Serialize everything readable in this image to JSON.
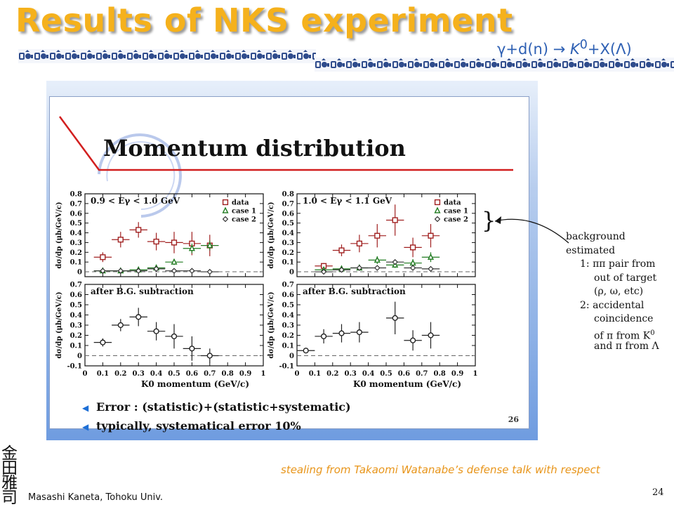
{
  "header": {
    "title": "Results of NKS experiment",
    "reaction": {
      "lhs": "γ+d(n) → ",
      "product": "K",
      "sup": "0",
      "rhs": "+X(Λ)"
    }
  },
  "slide": {
    "title": "Momentum distribution",
    "number": "26",
    "bullets": [
      "Error : (statistic)+(statistic+systematic)",
      "typically, systematical error 10%"
    ],
    "legend": {
      "data": "data",
      "case1": "case 1",
      "case2": "case 2"
    },
    "subtraction_label": "after B.G. subtraction",
    "brace": "}"
  },
  "background_note": {
    "lines": [
      "background",
      "estimated",
      "1: ππ pair from",
      "out of target",
      "(ρ, ω, etc)",
      "2: accidental",
      "coincidence",
      "of π from K",
      "and π from Λ"
    ],
    "sup_line": 7,
    "sup_text": "0"
  },
  "footer": {
    "credit": "stealing from Takaomi Watanabe’s defense talk with respect",
    "author": "Masashi Kaneta, Tohoku Univ.",
    "page": "24",
    "kanji": [
      "金",
      "田",
      "雅",
      "司"
    ]
  },
  "colors": {
    "title": "#f5b11c",
    "reaction": "#2d5fb3",
    "credit": "#e8951a",
    "data": "#a02020",
    "case1": "#1f7a1f",
    "case2": "#333333"
  },
  "chart_data": [
    {
      "type": "scatter",
      "title": "0.9 < Eγ < 1.0 GeV",
      "xlabel": "K0 momentum (GeV/c)",
      "ylabel": "dσ/dp (μb/GeV/c)",
      "xlim": [
        0,
        1
      ],
      "ylim": [
        -0.05,
        0.8
      ],
      "yticks": [
        0,
        0.1,
        0.2,
        0.3,
        0.4,
        0.5,
        0.6,
        0.7,
        0.8
      ],
      "series": [
        {
          "name": "data",
          "marker": "square",
          "color": "#a02020",
          "x": [
            0.1,
            0.2,
            0.3,
            0.4,
            0.5,
            0.6,
            0.7
          ],
          "y": [
            0.15,
            0.33,
            0.43,
            0.31,
            0.3,
            0.29,
            0.27
          ],
          "yerr": [
            0.05,
            0.08,
            0.08,
            0.09,
            0.11,
            0.12,
            0.11
          ]
        },
        {
          "name": "case 1",
          "marker": "triangle",
          "color": "#1f7a1f",
          "x": [
            0.1,
            0.2,
            0.3,
            0.4,
            0.5,
            0.6,
            0.7
          ],
          "y": [
            0.01,
            0.01,
            0.02,
            0.04,
            0.1,
            0.24,
            0.27
          ],
          "yerr": [
            0.01,
            0.01,
            0.01,
            0.02,
            0.03,
            0.05,
            0.05
          ]
        },
        {
          "name": "case 2",
          "marker": "diamond",
          "color": "#333333",
          "x": [
            0.1,
            0.2,
            0.3,
            0.4,
            0.5,
            0.6,
            0.7
          ],
          "y": [
            0.01,
            0.01,
            0.01,
            0.03,
            0.01,
            0.01,
            0.0
          ],
          "yerr": [
            0.005,
            0.005,
            0.005,
            0.01,
            0.005,
            0.005,
            0.005
          ]
        }
      ]
    },
    {
      "type": "scatter",
      "title": "1.0 < Eγ < 1.1 GeV",
      "xlabel": "K0 momentum (GeV/c)",
      "ylabel": "dσ/dp (μb/GeV/c)",
      "xlim": [
        0,
        1
      ],
      "ylim": [
        -0.05,
        0.8
      ],
      "yticks": [
        0,
        0.1,
        0.2,
        0.3,
        0.4,
        0.5,
        0.6,
        0.7,
        0.8
      ],
      "series": [
        {
          "name": "data",
          "marker": "square",
          "color": "#a02020",
          "x": [
            0.15,
            0.25,
            0.35,
            0.45,
            0.55,
            0.65,
            0.75
          ],
          "y": [
            0.06,
            0.22,
            0.29,
            0.37,
            0.53,
            0.25,
            0.37
          ],
          "yerr": [
            0.03,
            0.06,
            0.09,
            0.12,
            0.16,
            0.1,
            0.12
          ]
        },
        {
          "name": "case 1",
          "marker": "triangle",
          "color": "#1f7a1f",
          "x": [
            0.15,
            0.25,
            0.35,
            0.45,
            0.55,
            0.65,
            0.75
          ],
          "y": [
            0.02,
            0.03,
            0.04,
            0.12,
            0.07,
            0.09,
            0.15
          ],
          "yerr": [
            0.01,
            0.01,
            0.02,
            0.04,
            0.03,
            0.04,
            0.05
          ]
        },
        {
          "name": "case 2",
          "marker": "diamond",
          "color": "#333333",
          "x": [
            0.15,
            0.25,
            0.35,
            0.45,
            0.55,
            0.65,
            0.75
          ],
          "y": [
            0.0,
            0.02,
            0.04,
            0.04,
            0.1,
            0.04,
            0.03
          ],
          "yerr": [
            0.005,
            0.01,
            0.01,
            0.01,
            0.02,
            0.01,
            0.01
          ]
        }
      ]
    },
    {
      "type": "scatter",
      "title": "after B.G. subtraction",
      "xlabel": "K0 momentum (GeV/c)",
      "ylabel": "dσ/dp (μb/GeV/c)",
      "xlim": [
        0,
        1
      ],
      "ylim": [
        -0.1,
        0.7
      ],
      "yticks": [
        -0.1,
        0,
        0.1,
        0.2,
        0.3,
        0.4,
        0.5,
        0.6,
        0.7
      ],
      "series": [
        {
          "name": "data",
          "marker": "circle",
          "color": "#222222",
          "x": [
            0.1,
            0.2,
            0.3,
            0.4,
            0.5,
            0.6,
            0.7
          ],
          "y": [
            0.13,
            0.3,
            0.38,
            0.24,
            0.19,
            0.07,
            0.0
          ],
          "yerr": [
            0.04,
            0.06,
            0.09,
            0.09,
            0.12,
            0.12,
            0.07
          ]
        }
      ]
    },
    {
      "type": "scatter",
      "title": "after B.G. subtraction",
      "xlabel": "K0 momentum (GeV/c)",
      "ylabel": "dσ/dp (μb/GeV/c)",
      "xlim": [
        0,
        1
      ],
      "ylim": [
        -0.1,
        0.7
      ],
      "yticks": [
        -0.1,
        0,
        0.1,
        0.2,
        0.3,
        0.4,
        0.5,
        0.6,
        0.7
      ],
      "series": [
        {
          "name": "data",
          "marker": "circle",
          "color": "#222222",
          "x": [
            0.05,
            0.15,
            0.25,
            0.35,
            0.55,
            0.65,
            0.75
          ],
          "y": [
            0.05,
            0.19,
            0.22,
            0.23,
            0.37,
            0.15,
            0.2
          ],
          "yerr": [
            0.02,
            0.07,
            0.09,
            0.1,
            0.16,
            0.1,
            0.13
          ]
        }
      ]
    }
  ]
}
